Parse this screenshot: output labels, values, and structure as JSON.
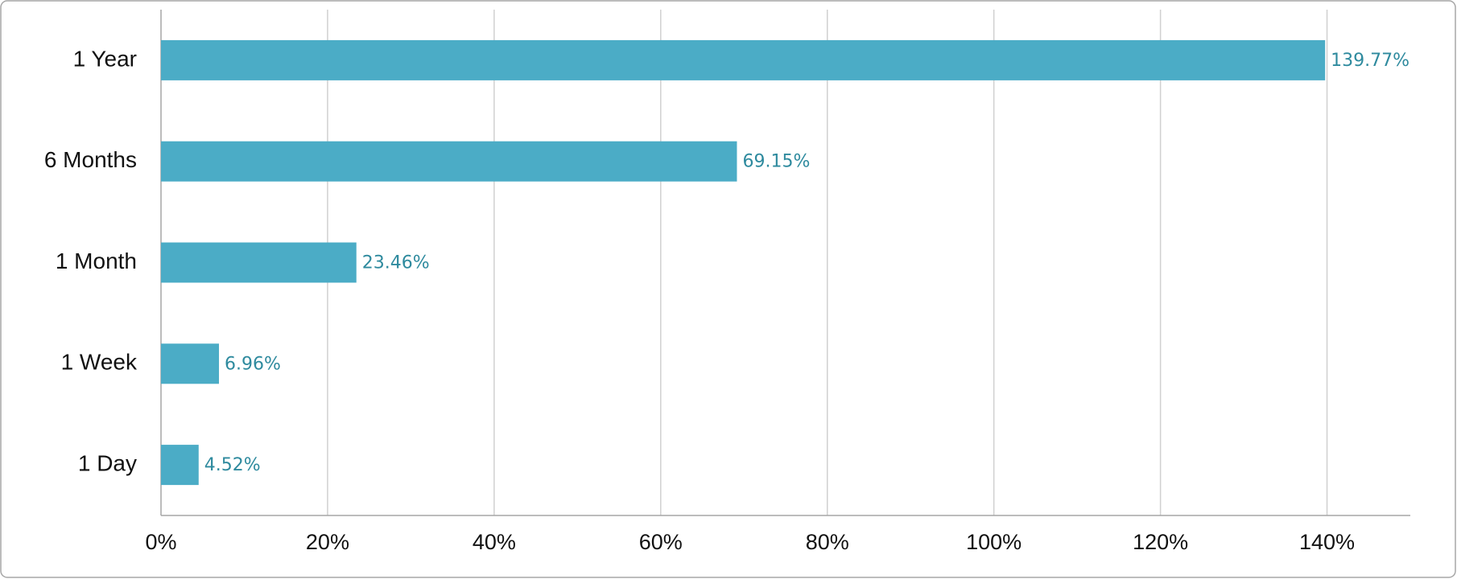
{
  "chart_data": {
    "type": "barh",
    "categories": [
      "1 Year",
      "6 Months",
      "1 Month",
      "1 Week",
      "1 Day"
    ],
    "values": [
      139.77,
      69.15,
      23.46,
      6.96,
      4.52
    ],
    "value_labels": [
      "139.77%",
      "69.15%",
      "23.46%",
      "6.96%",
      "4.52%"
    ],
    "color": "#4bacc6",
    "xlim": [
      0,
      150
    ],
    "xticks": [
      {
        "value": 0,
        "label": "0%"
      },
      {
        "value": 20,
        "label": "20%"
      },
      {
        "value": 40,
        "label": "40%"
      },
      {
        "value": 60,
        "label": "60%"
      },
      {
        "value": 80,
        "label": "80%"
      },
      {
        "value": 100,
        "label": "100%"
      },
      {
        "value": 120,
        "label": "120%"
      },
      {
        "value": 140,
        "label": "140%"
      }
    ],
    "grid": true
  }
}
